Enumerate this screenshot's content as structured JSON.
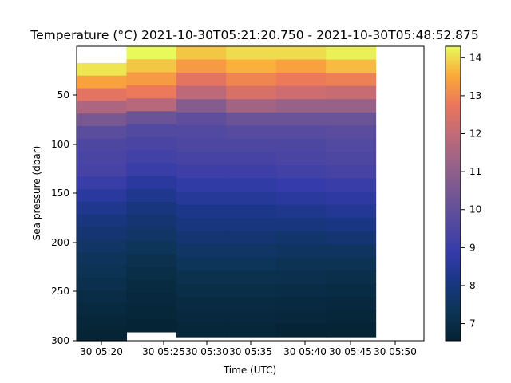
{
  "chart_data": {
    "type": "heatmap",
    "title": "Temperature (°C)  2021-10-30T05:21:20.750 - 2021-10-30T05:48:52.875",
    "xlabel": "Time (UTC)",
    "ylabel": "Sea pressure (dbar)",
    "x_ticks": [
      "30 05:20",
      "30 05:25",
      "30 05:30",
      "30 05:35",
      "30 05:40",
      "30 05:45",
      "30 05:50"
    ],
    "y_ticks": [
      "50",
      "100",
      "150",
      "200",
      "250",
      "300"
    ],
    "y_tick_values": [
      50,
      100,
      150,
      200,
      250,
      300
    ],
    "ylim": [
      300,
      0
    ],
    "y_inverted": true,
    "colorbar_ticks": [
      "7",
      "8",
      "9",
      "10",
      "11",
      "12",
      "13",
      "14"
    ],
    "colorbar_tick_values": [
      7,
      8,
      9,
      10,
      11,
      12,
      13,
      14
    ],
    "colorbar_range": [
      6.55,
      14.3
    ],
    "colormap": "thermal",
    "grid": false,
    "profiles": [
      {
        "start": "05:19:30",
        "end": "05:24:10",
        "top_pressure": 17,
        "bottom_pressure": 300,
        "values": [
          14.1,
          13.4,
          12.6,
          11.6,
          10.5,
          9.8,
          9.5,
          9.4,
          9.3,
          9.0,
          8.6,
          8.3,
          8.0,
          7.8,
          7.6,
          7.45,
          7.3,
          7.15,
          7.0,
          6.85,
          6.7,
          6.6
        ]
      },
      {
        "start": "05:24:10",
        "end": "05:28:50",
        "top_pressure": 0,
        "bottom_pressure": 291,
        "values": [
          14.3,
          13.8,
          13.3,
          12.8,
          11.8,
          10.2,
          9.6,
          9.4,
          9.2,
          9.0,
          8.6,
          8.3,
          8.0,
          7.8,
          7.6,
          7.4,
          7.2,
          7.05,
          6.9,
          6.8,
          6.7,
          6.6
        ]
      },
      {
        "start": "05:28:50",
        "end": "05:33:30",
        "top_pressure": 0,
        "bottom_pressure": 296,
        "values": [
          13.8,
          13.3,
          12.6,
          11.9,
          10.8,
          9.9,
          9.6,
          9.5,
          9.3,
          9.1,
          8.8,
          8.5,
          8.2,
          8.0,
          7.8,
          7.6,
          7.4,
          7.2,
          7.05,
          6.9,
          6.8,
          6.7
        ]
      },
      {
        "start": "05:33:30",
        "end": "05:38:10",
        "top_pressure": 0,
        "bottom_pressure": 296,
        "values": [
          14.0,
          13.6,
          13.0,
          12.4,
          11.4,
          10.2,
          9.7,
          9.5,
          9.3,
          9.1,
          8.8,
          8.5,
          8.2,
          8.0,
          7.8,
          7.6,
          7.4,
          7.2,
          7.05,
          6.9,
          6.8,
          6.7
        ]
      },
      {
        "start": "05:38:10",
        "end": "05:42:50",
        "top_pressure": 0,
        "bottom_pressure": 296,
        "values": [
          14.0,
          13.4,
          12.8,
          12.2,
          11.2,
          10.2,
          9.7,
          9.5,
          9.4,
          9.2,
          8.9,
          8.6,
          8.3,
          8.0,
          7.7,
          7.5,
          7.3,
          7.15,
          7.0,
          6.85,
          6.75,
          6.65
        ]
      },
      {
        "start": "05:42:50",
        "end": "05:47:30",
        "top_pressure": 0,
        "bottom_pressure": 296,
        "values": [
          14.2,
          13.7,
          12.9,
          12.1,
          11.2,
          10.2,
          9.8,
          9.6,
          9.5,
          9.3,
          9.0,
          8.7,
          8.4,
          8.1,
          7.8,
          7.5,
          7.3,
          7.1,
          6.95,
          6.8,
          6.7,
          6.6
        ]
      }
    ]
  }
}
